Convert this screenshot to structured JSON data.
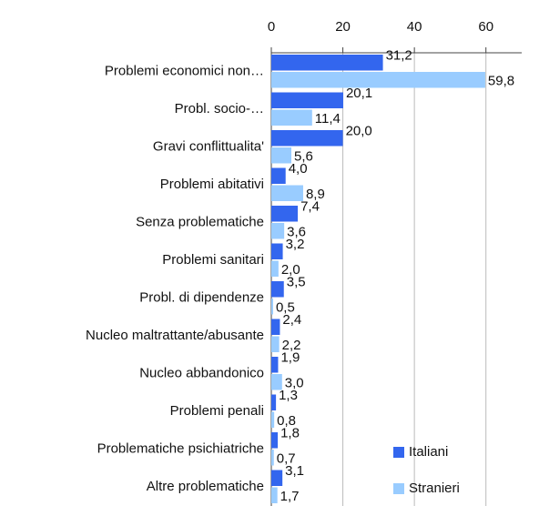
{
  "chart_data": {
    "type": "bar",
    "orientation": "horizontal",
    "categories": [
      "Problemi economici non…",
      "Probl. socio-…",
      "Gravi conflittualita'",
      "Problemi abitativi",
      "Senza problematiche",
      "Problemi sanitari",
      "Probl. di dipendenze",
      "Nucleo maltrattante/abusante",
      "Nucleo abbandonico",
      "Problemi penali",
      "Problematiche psichiatriche",
      "Altre problematiche"
    ],
    "series": [
      {
        "name": "Italiani",
        "color": "#3366ee",
        "values": [
          31.2,
          20.1,
          20.0,
          4.0,
          7.4,
          3.2,
          3.5,
          2.4,
          1.9,
          1.3,
          1.8,
          3.1
        ],
        "value_labels": [
          "31,2",
          "20,1",
          "20,0",
          "4,0",
          "7,4",
          "3,2",
          "3,5",
          "2,4",
          "1,9",
          "1,3",
          "1,8",
          "3,1"
        ]
      },
      {
        "name": "Stranieri",
        "color": "#99ccff",
        "values": [
          59.8,
          11.4,
          5.6,
          8.9,
          3.6,
          2.0,
          0.5,
          2.2,
          3.0,
          0.8,
          0.7,
          1.7
        ],
        "value_labels": [
          "59,8",
          "11,4",
          "5,6",
          "8,9",
          "3,6",
          "2,0",
          "0,5",
          "2,2",
          "3,0",
          "0,8",
          "0,7",
          "1,7"
        ]
      }
    ],
    "xlim": [
      0,
      70
    ],
    "xticks": [
      0,
      20,
      40,
      60
    ],
    "grid": true,
    "legend": "lower right"
  }
}
